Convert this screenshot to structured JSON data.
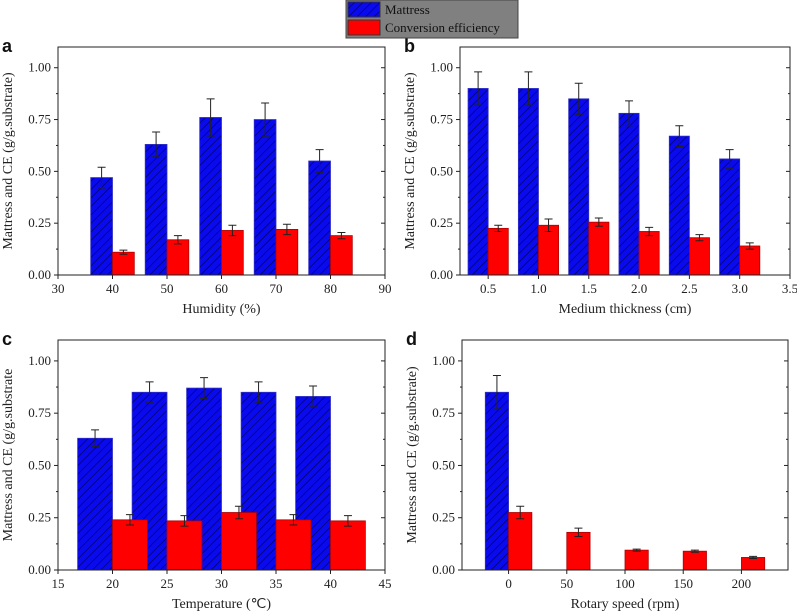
{
  "legend": {
    "items": [
      {
        "label": "Mattress",
        "color": "#0a0aee",
        "hatched": true
      },
      {
        "label": "Conversion efficiency",
        "color": "#ff0000",
        "hatched": false
      }
    ],
    "background": "#808080"
  },
  "chart_data": [
    {
      "panel": "a",
      "type": "bar",
      "xlabel": "Humidity (%)",
      "ylabel": "Mattress and CE (g/g.substrate)",
      "xlim": [
        30,
        90
      ],
      "xticks": [
        "30",
        "40",
        "50",
        "60",
        "70",
        "80",
        "90"
      ],
      "xtick_values": [
        30,
        40,
        50,
        60,
        70,
        80,
        90
      ],
      "ylim": [
        0,
        1.1
      ],
      "yticks": [
        "0.00",
        "0.25",
        "0.50",
        "0.75",
        "1.00"
      ],
      "ytick_values": [
        0,
        0.25,
        0.5,
        0.75,
        1.0
      ],
      "bar_width": 4,
      "x": [
        40,
        50,
        60,
        70,
        80
      ],
      "series": [
        {
          "name": "Mattress",
          "values": [
            0.47,
            0.63,
            0.76,
            0.75,
            0.55
          ],
          "errors": [
            0.05,
            0.06,
            0.09,
            0.08,
            0.055
          ]
        },
        {
          "name": "Conversion efficiency",
          "values": [
            0.11,
            0.17,
            0.215,
            0.22,
            0.19
          ],
          "errors": [
            0.01,
            0.02,
            0.025,
            0.025,
            0.015
          ]
        }
      ]
    },
    {
      "panel": "b",
      "type": "bar",
      "xlabel": "Medium thickness (cm)",
      "ylabel": "Mattress and CE (g/g.substrate)",
      "xlim": [
        0.22,
        3.5
      ],
      "xticks": [
        "0.5",
        "1.0",
        "1.5",
        "2.0",
        "2.5",
        "3.0",
        "3.5"
      ],
      "xtick_values": [
        0.5,
        1.0,
        1.5,
        2.0,
        2.5,
        3.0,
        3.5
      ],
      "ylim": [
        0,
        1.1
      ],
      "yticks": [
        "0.00",
        "0.25",
        "0.50",
        "0.75",
        "1.00"
      ],
      "ytick_values": [
        0,
        0.25,
        0.5,
        0.75,
        1.0
      ],
      "bar_width": 0.2,
      "x": [
        0.5,
        1.0,
        1.5,
        2.0,
        2.5,
        3.0
      ],
      "series": [
        {
          "name": "Mattress",
          "values": [
            0.9,
            0.9,
            0.85,
            0.78,
            0.67,
            0.56
          ],
          "errors": [
            0.08,
            0.08,
            0.075,
            0.06,
            0.05,
            0.045
          ]
        },
        {
          "name": "Conversion efficiency",
          "values": [
            0.225,
            0.24,
            0.255,
            0.21,
            0.18,
            0.14
          ],
          "errors": [
            0.015,
            0.03,
            0.02,
            0.02,
            0.015,
            0.015
          ]
        }
      ]
    },
    {
      "panel": "c",
      "type": "bar",
      "xlabel": "Temperature (℃)",
      "ylabel": "Mattress and CE (g/g.substrate",
      "xlim": [
        15,
        45
      ],
      "xticks": [
        "15",
        "20",
        "25",
        "30",
        "35",
        "40",
        "45"
      ],
      "xtick_values": [
        15,
        20,
        25,
        30,
        35,
        40,
        45
      ],
      "ylim": [
        0,
        1.1
      ],
      "yticks": [
        "0.00",
        "0.25",
        "0.50",
        "0.75",
        "1.00"
      ],
      "ytick_values": [
        0,
        0.25,
        0.5,
        0.75,
        1.0
      ],
      "bar_width": 3.2,
      "x": [
        20,
        25,
        30,
        35,
        40
      ],
      "series": [
        {
          "name": "Mattress",
          "values": [
            0.63,
            0.85,
            0.87,
            0.85,
            0.83
          ],
          "errors": [
            0.04,
            0.05,
            0.05,
            0.05,
            0.05
          ]
        },
        {
          "name": "Conversion efficiency",
          "values": [
            0.24,
            0.235,
            0.275,
            0.24,
            0.235
          ],
          "errors": [
            0.025,
            0.025,
            0.03,
            0.025,
            0.025
          ]
        }
      ]
    },
    {
      "panel": "d",
      "type": "bar",
      "xlabel": "Rotary speed (rpm)",
      "ylabel": "Mattress and CE (g/g.substrate)",
      "xlim": [
        -40,
        240
      ],
      "xticks": [
        "0",
        "50",
        "100",
        "150",
        "200"
      ],
      "xtick_values": [
        0,
        50,
        100,
        150,
        200
      ],
      "ylim": [
        0,
        1.1
      ],
      "yticks": [
        "0.00",
        "0.25",
        "0.50",
        "0.75",
        "1.00"
      ],
      "ytick_values": [
        0,
        0.25,
        0.5,
        0.75,
        1.0
      ],
      "bar_width": 20,
      "series": [
        {
          "name": "Mattress",
          "x": [
            0
          ],
          "values": [
            0.85
          ],
          "errors": [
            0.08
          ]
        },
        {
          "name": "Conversion efficiency",
          "x": [
            0,
            50,
            100,
            150,
            200
          ],
          "values": [
            0.275,
            0.18,
            0.095,
            0.09,
            0.06
          ],
          "errors": [
            0.03,
            0.02,
            0.005,
            0.005,
            0.005
          ]
        }
      ]
    }
  ]
}
